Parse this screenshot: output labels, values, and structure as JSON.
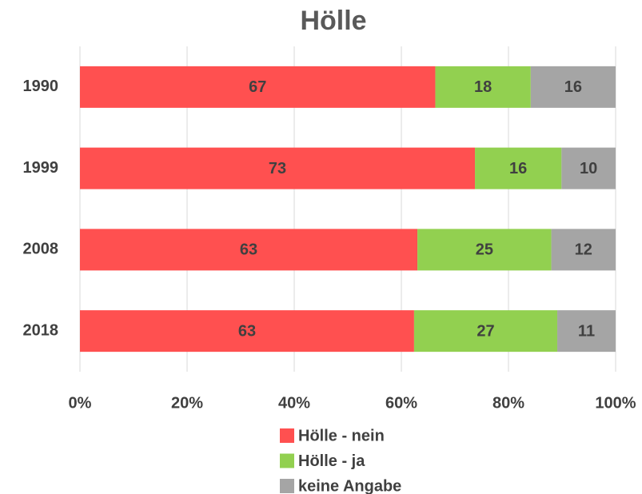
{
  "chart_data": {
    "type": "bar",
    "orientation": "horizontal",
    "stacking": "percent",
    "title": "Hölle",
    "categories": [
      "1990",
      "1999",
      "2008",
      "2018"
    ],
    "series": [
      {
        "name": "Hölle - nein",
        "color": "#ff5050",
        "values": [
          67,
          73,
          63,
          63
        ]
      },
      {
        "name": "Hölle - ja",
        "color": "#92d050",
        "values": [
          18,
          16,
          25,
          27
        ]
      },
      {
        "name": "keine Angabe",
        "color": "#a5a5a5",
        "values": [
          16,
          10,
          12,
          11
        ]
      }
    ],
    "xlim": [
      0,
      100
    ],
    "xticks": [
      {
        "value": 0,
        "label": "0%"
      },
      {
        "value": 20,
        "label": "20%"
      },
      {
        "value": 40,
        "label": "40%"
      },
      {
        "value": 60,
        "label": "60%"
      },
      {
        "value": 80,
        "label": "80%"
      },
      {
        "value": 100,
        "label": "100%"
      }
    ],
    "grid": true,
    "legend": "bottom"
  }
}
